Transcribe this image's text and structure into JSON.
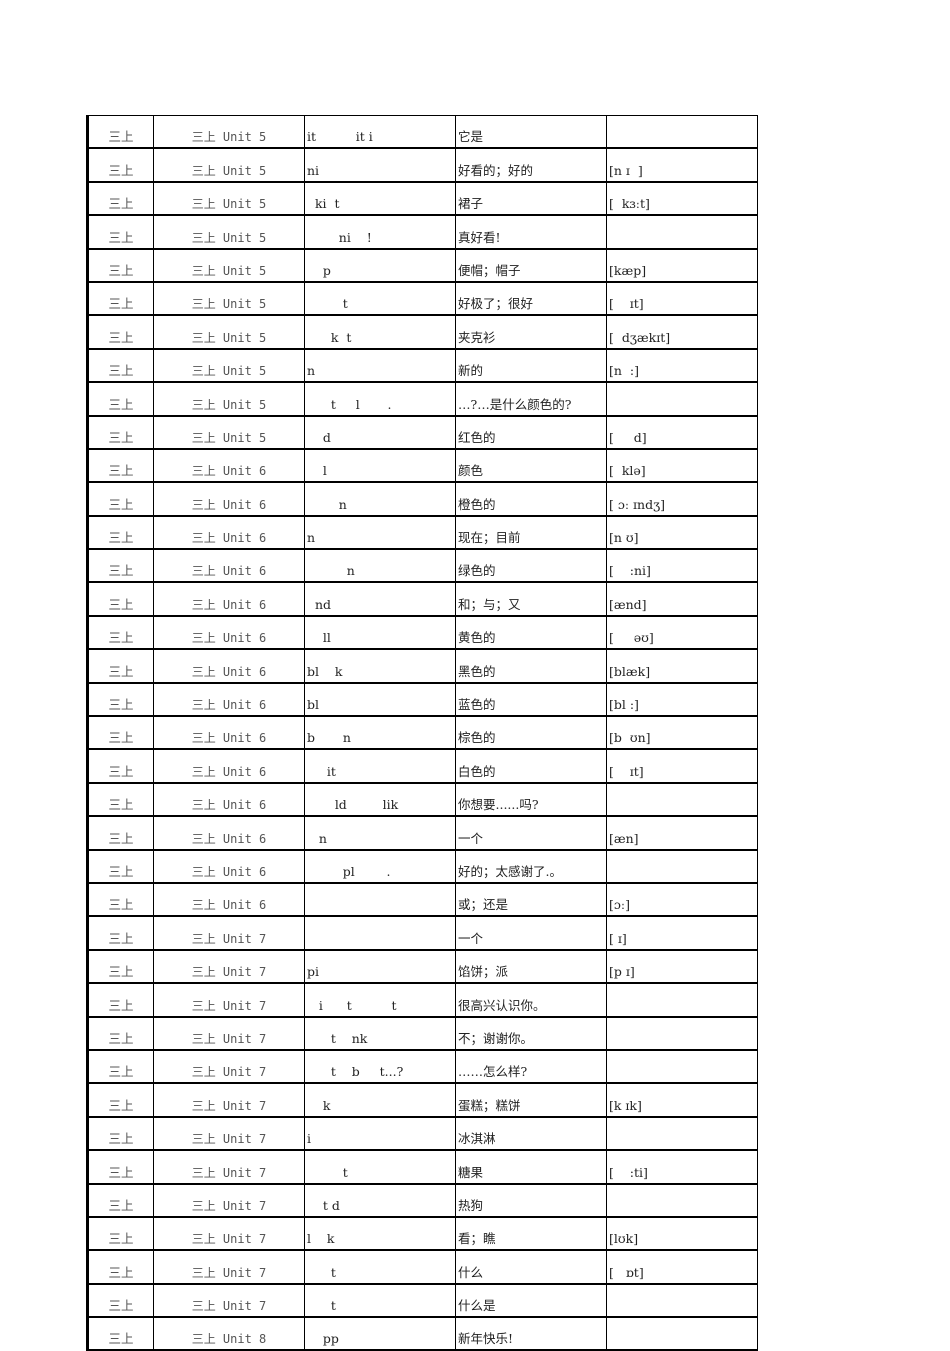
{
  "rows": [
    [
      "三上",
      "三上 Unit 5",
      "it          it i",
      "它是",
      ""
    ],
    [
      "三上",
      "三上 Unit 5",
      "ni",
      "好看的；好的",
      "[n ɪ  ]"
    ],
    [
      "三上",
      "三上 Unit 5",
      "  ki  t",
      "裙子",
      "[  kɜːt]"
    ],
    [
      "三上",
      "三上 Unit 5",
      "        ni    !",
      "真好看!",
      ""
    ],
    [
      "三上",
      "三上 Unit 5",
      "    p",
      "便帽；帽子",
      "[kæp]"
    ],
    [
      "三上",
      "三上 Unit 5",
      "         t",
      "好极了；很好",
      "[    ɪt]"
    ],
    [
      "三上",
      "三上 Unit 5",
      "      k  t",
      "夹克衫",
      "[  dʒækɪt]"
    ],
    [
      "三上",
      "三上 Unit 5",
      "n",
      "新的",
      "[n  :]"
    ],
    [
      "三上",
      "三上 Unit 5",
      "      t     l       .",
      "…?…是什么颜色的?",
      ""
    ],
    [
      "三上",
      "三上 Unit 5",
      "    d",
      "红色的",
      "[     d]"
    ],
    [
      "三上",
      "三上 Unit 6",
      "    l",
      "颜色",
      "[  klə]"
    ],
    [
      "三上",
      "三上 Unit 6",
      "        n",
      "橙色的",
      "[ ɔː ɪndʒ]"
    ],
    [
      "三上",
      "三上 Unit 6",
      "n",
      "现在；目前",
      "[n ʊ]"
    ],
    [
      "三上",
      "三上 Unit 6",
      "          n",
      "绿色的",
      "[    :ni]"
    ],
    [
      "三上",
      "三上 Unit 6",
      "  nd",
      "和；与；又",
      "[ænd]"
    ],
    [
      "三上",
      "三上 Unit 6",
      "    ll",
      "黄色的",
      "[     əʊ]"
    ],
    [
      "三上",
      "三上 Unit 6",
      "bl    k",
      "黑色的",
      "[blæk]"
    ],
    [
      "三上",
      "三上 Unit 6",
      "bl",
      "蓝色的",
      "[bl :]"
    ],
    [
      "三上",
      "三上 Unit 6",
      "b       n",
      "棕色的",
      "[b  ʊn]"
    ],
    [
      "三上",
      "三上 Unit 6",
      "     it",
      "白色的",
      "[    ɪt]"
    ],
    [
      "三上",
      "三上 Unit 6",
      "       ld         lik",
      "你想要......吗?",
      ""
    ],
    [
      "三上",
      "三上 Unit 6",
      "   n",
      "一个",
      "[æn]"
    ],
    [
      "三上",
      "三上 Unit 6",
      "         pl        .",
      "好的；太感谢了.。",
      ""
    ],
    [
      "三上",
      "三上 Unit 6",
      "",
      "或；还是",
      "[ɔː]"
    ],
    [
      "三上",
      "三上 Unit 7",
      "",
      "一个",
      "[ ɪ]"
    ],
    [
      "三上",
      "三上 Unit 7",
      "pi",
      "馅饼；派",
      "[p ɪ]"
    ],
    [
      "三上",
      "三上 Unit 7",
      "   i      t          t",
      "很高兴认识你。",
      ""
    ],
    [
      "三上",
      "三上 Unit 7",
      "      t    nk",
      "不；谢谢你。",
      ""
    ],
    [
      "三上",
      "三上 Unit 7",
      "      t    b     t...?",
      "……怎么样?",
      ""
    ],
    [
      "三上",
      "三上 Unit 7",
      "    k",
      "蛋糕；糕饼",
      "[k ɪk]"
    ],
    [
      "三上",
      "三上 Unit 7",
      "i",
      "冰淇淋",
      ""
    ],
    [
      "三上",
      "三上 Unit 7",
      "         t",
      "糖果",
      "[    :ti]"
    ],
    [
      "三上",
      "三上 Unit 7",
      "    t d",
      "热狗",
      ""
    ],
    [
      "三上",
      "三上 Unit 7",
      "l    k",
      "看；瞧",
      "[lʊk]"
    ],
    [
      "三上",
      "三上 Unit 7",
      "      t",
      "什么",
      "[   ɒt]"
    ],
    [
      "三上",
      "三上 Unit 7",
      "      t",
      "什么是",
      ""
    ],
    [
      "三上",
      "三上 Unit 8",
      "    pp",
      "新年快乐!",
      ""
    ]
  ]
}
